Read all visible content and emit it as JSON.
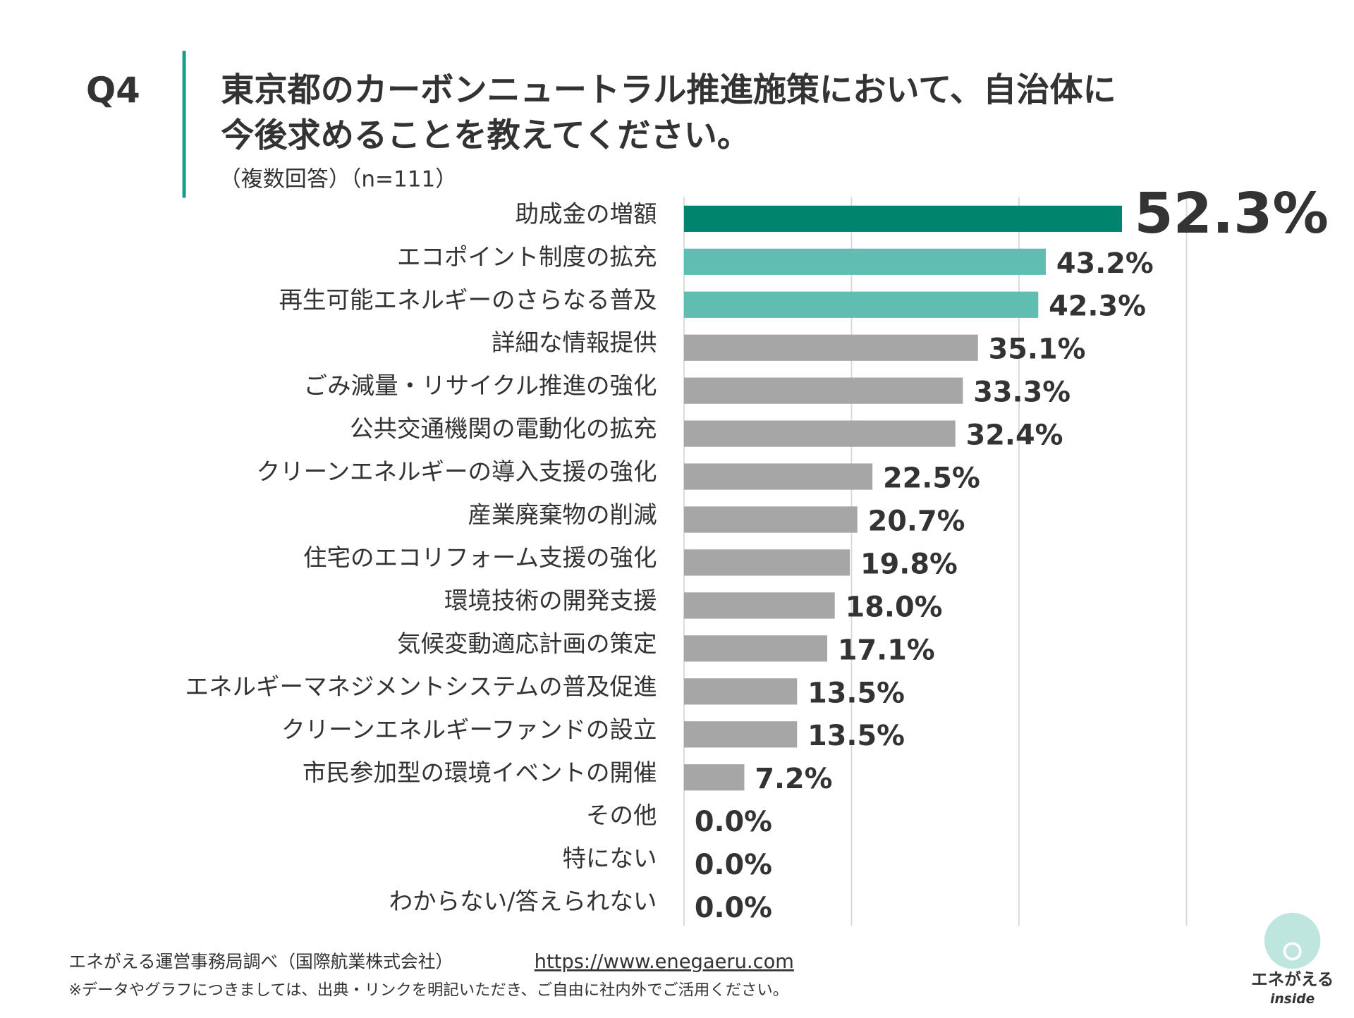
{
  "chart_data": {
    "type": "hbar",
    "question": "Q4",
    "title": [
      "東京都のカーボンニュートラル推進施策において、自治体に",
      "今後求めることを教えてください。"
    ],
    "subtitle": "（複数回答）（n=111）",
    "categories": [
      "助成金の増額",
      "エコポイント制度の拡充",
      "再生可能エネルギーのさらなる普及",
      "詳細な情報提供",
      "ごみ減量・リサイクル推進の強化",
      "公共交通機関の電動化の拡充",
      "クリーンエネルギーの導入支援の強化",
      "産業廃棄物の削減",
      "住宅のエコリフォーム支援の強化",
      "環境技術の開発支援",
      "気候変動適応計画の策定",
      "エネルギーマネジメントシステムの普及促進",
      "クリーンエネルギーファンドの設立",
      "市民参加型の環境イベントの開催",
      "その他",
      "特にない",
      "わからない/答えられない"
    ],
    "values": [
      52.3,
      43.2,
      42.3,
      35.1,
      33.3,
      32.4,
      22.5,
      20.7,
      19.8,
      18.0,
      17.1,
      13.5,
      13.5,
      7.2,
      0.0,
      0.0,
      0.0
    ],
    "value_labels": [
      "52.3%",
      "43.2%",
      "42.3%",
      "35.1%",
      "33.3%",
      "32.4%",
      "22.5%",
      "20.7%",
      "19.8%",
      "18.0%",
      "17.1%",
      "13.5%",
      "13.5%",
      "7.2%",
      "0.0%",
      "0.0%",
      "0.0%"
    ],
    "colors": [
      "#00836f",
      "#5fbdb2",
      "#5fbdb2",
      "#a6a6a6",
      "#a6a6a6",
      "#a6a6a6",
      "#a6a6a6",
      "#a6a6a6",
      "#a6a6a6",
      "#a6a6a6",
      "#a6a6a6",
      "#a6a6a6",
      "#a6a6a6",
      "#a6a6a6",
      "#a6a6a6",
      "#a6a6a6",
      "#a6a6a6"
    ],
    "label_color": "#0e6b5c",
    "xlim": [
      0,
      60
    ],
    "xticks": [
      0,
      20,
      40,
      60
    ],
    "grid": true
  },
  "footer": {
    "source": "エネがえる運営事務局調べ（国際航業株式会社）",
    "link": "https://www.enegaeru.com",
    "note": "※データやグラフにつきましては、出典・リンクを明記いただき、ご自由に社内外でご活用ください。"
  },
  "logo": {
    "name": "エネがえる",
    "sub": "inside"
  }
}
